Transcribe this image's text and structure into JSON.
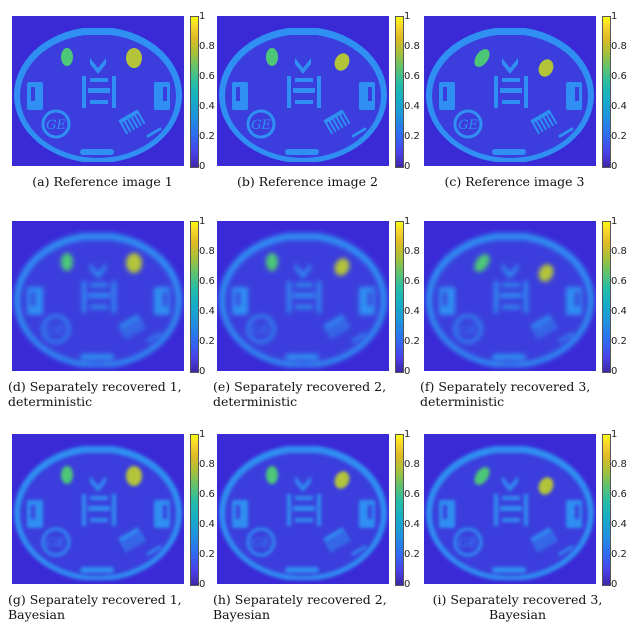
{
  "colorbar": {
    "ticks": [
      "1",
      "0.8",
      "0.6",
      "0.4",
      "0.2",
      "0"
    ]
  },
  "panels": [
    {
      "caption_1": "(a) Reference image 1",
      "caption_2": ""
    },
    {
      "caption_1": "(b) Reference image 2",
      "caption_2": ""
    },
    {
      "caption_1": "(c) Reference image 3",
      "caption_2": ""
    },
    {
      "caption_1": "(d) Separately recovered 1,",
      "caption_2": "deterministic"
    },
    {
      "caption_1": "(e) Separately recovered 2,",
      "caption_2": "deterministic"
    },
    {
      "caption_1": "(f) Separately recovered 3,",
      "caption_2": "deterministic"
    },
    {
      "caption_1": "(g) Separately recovered 1,",
      "caption_2": "Bayesian"
    },
    {
      "caption_1": "(h) Separately recovered 2,",
      "caption_2": "Bayesian"
    },
    {
      "caption_1": "(i) Separately recovered 3,",
      "caption_2": "Bayesian"
    }
  ],
  "colors": {
    "background": "#3a2ad6",
    "phantom": "#2f8ff2",
    "green_ellipse": "#4cc777",
    "yellow_ellipse": "#b3c43a"
  }
}
